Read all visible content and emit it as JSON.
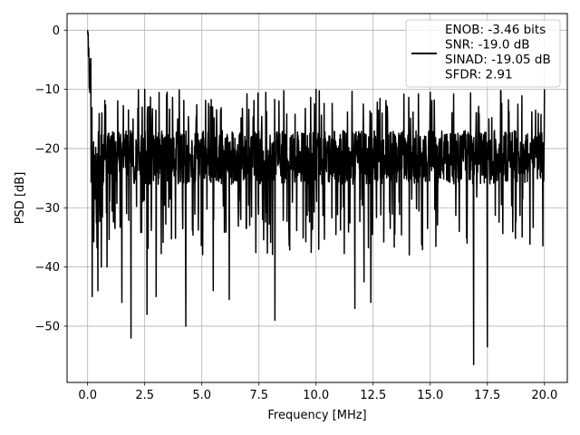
{
  "chart_data": {
    "type": "line",
    "title": "",
    "xlabel": "Frequency [MHz]",
    "ylabel": "PSD [dB]",
    "xlim": [
      -0.9,
      21.0
    ],
    "ylim": [
      -59.5,
      2.8
    ],
    "x_ticks": [
      0.0,
      2.5,
      5.0,
      7.5,
      10.0,
      12.5,
      15.0,
      17.5,
      20.0
    ],
    "x_tick_labels": [
      "0.0",
      "2.5",
      "5.0",
      "7.5",
      "10.0",
      "12.5",
      "15.0",
      "17.5",
      "20.0"
    ],
    "y_ticks": [
      0,
      -10,
      -20,
      -30,
      -40,
      -50
    ],
    "y_tick_labels": [
      "0",
      "−10",
      "−20",
      "−30",
      "−40",
      "−50"
    ],
    "grid": true,
    "legend_position": "top-right",
    "legend": {
      "lines": [
        "ENOB: -3.46 bits",
        "SNR: -19.0 dB",
        "SINAD: -19.05 dB",
        "SFDR: 2.91"
      ]
    },
    "series": [
      {
        "color": "#000000",
        "x_range": [
          0.0,
          20.0
        ],
        "noise_floor_db": [
          -28,
          -15
        ],
        "peak_db": 0.0,
        "x": [
          0.0,
          0.05,
          0.12,
          0.2,
          0.45,
          0.6,
          0.85,
          1.5,
          1.9,
          2.5,
          2.6,
          3.0,
          4.3,
          5.5,
          6.2,
          7.8,
          8.2,
          10.0,
          11.7,
          12.1,
          12.4,
          15.0,
          16.9,
          17.5,
          20.0
        ],
        "y": [
          0.0,
          -3.0,
          -10.0,
          -45.0,
          -44.0,
          -40.0,
          -40.0,
          -46.0,
          -52.0,
          -10.0,
          -48.0,
          -45.0,
          -50.0,
          -44.0,
          -45.5,
          -10.5,
          -49.0,
          -10.0,
          -47.0,
          -42.5,
          -46.0,
          -10.5,
          -56.5,
          -53.5,
          -10.0
        ]
      }
    ]
  }
}
